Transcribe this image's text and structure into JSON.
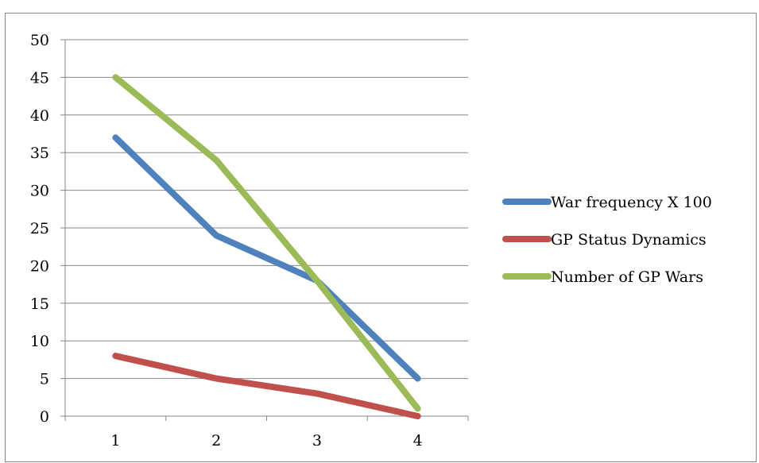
{
  "chart_data": {
    "type": "line",
    "title": "",
    "xlabel": "",
    "ylabel": "",
    "categories": [
      "1",
      "2",
      "3",
      "4"
    ],
    "ylim": [
      0,
      50
    ],
    "yticks": [
      0,
      5,
      10,
      15,
      20,
      25,
      30,
      35,
      40,
      45,
      50
    ],
    "grid": true,
    "legend_position": "right",
    "series": [
      {
        "name": "War frequency X 100",
        "values": [
          37,
          24,
          18,
          5
        ],
        "color": "#4f81bd"
      },
      {
        "name": "GP Status Dynamics",
        "values": [
          8,
          5,
          3,
          0
        ],
        "color": "#c0504d"
      },
      {
        "name": "Number of GP Wars",
        "values": [
          45,
          34,
          18,
          1
        ],
        "color": "#9bbb59"
      }
    ]
  }
}
